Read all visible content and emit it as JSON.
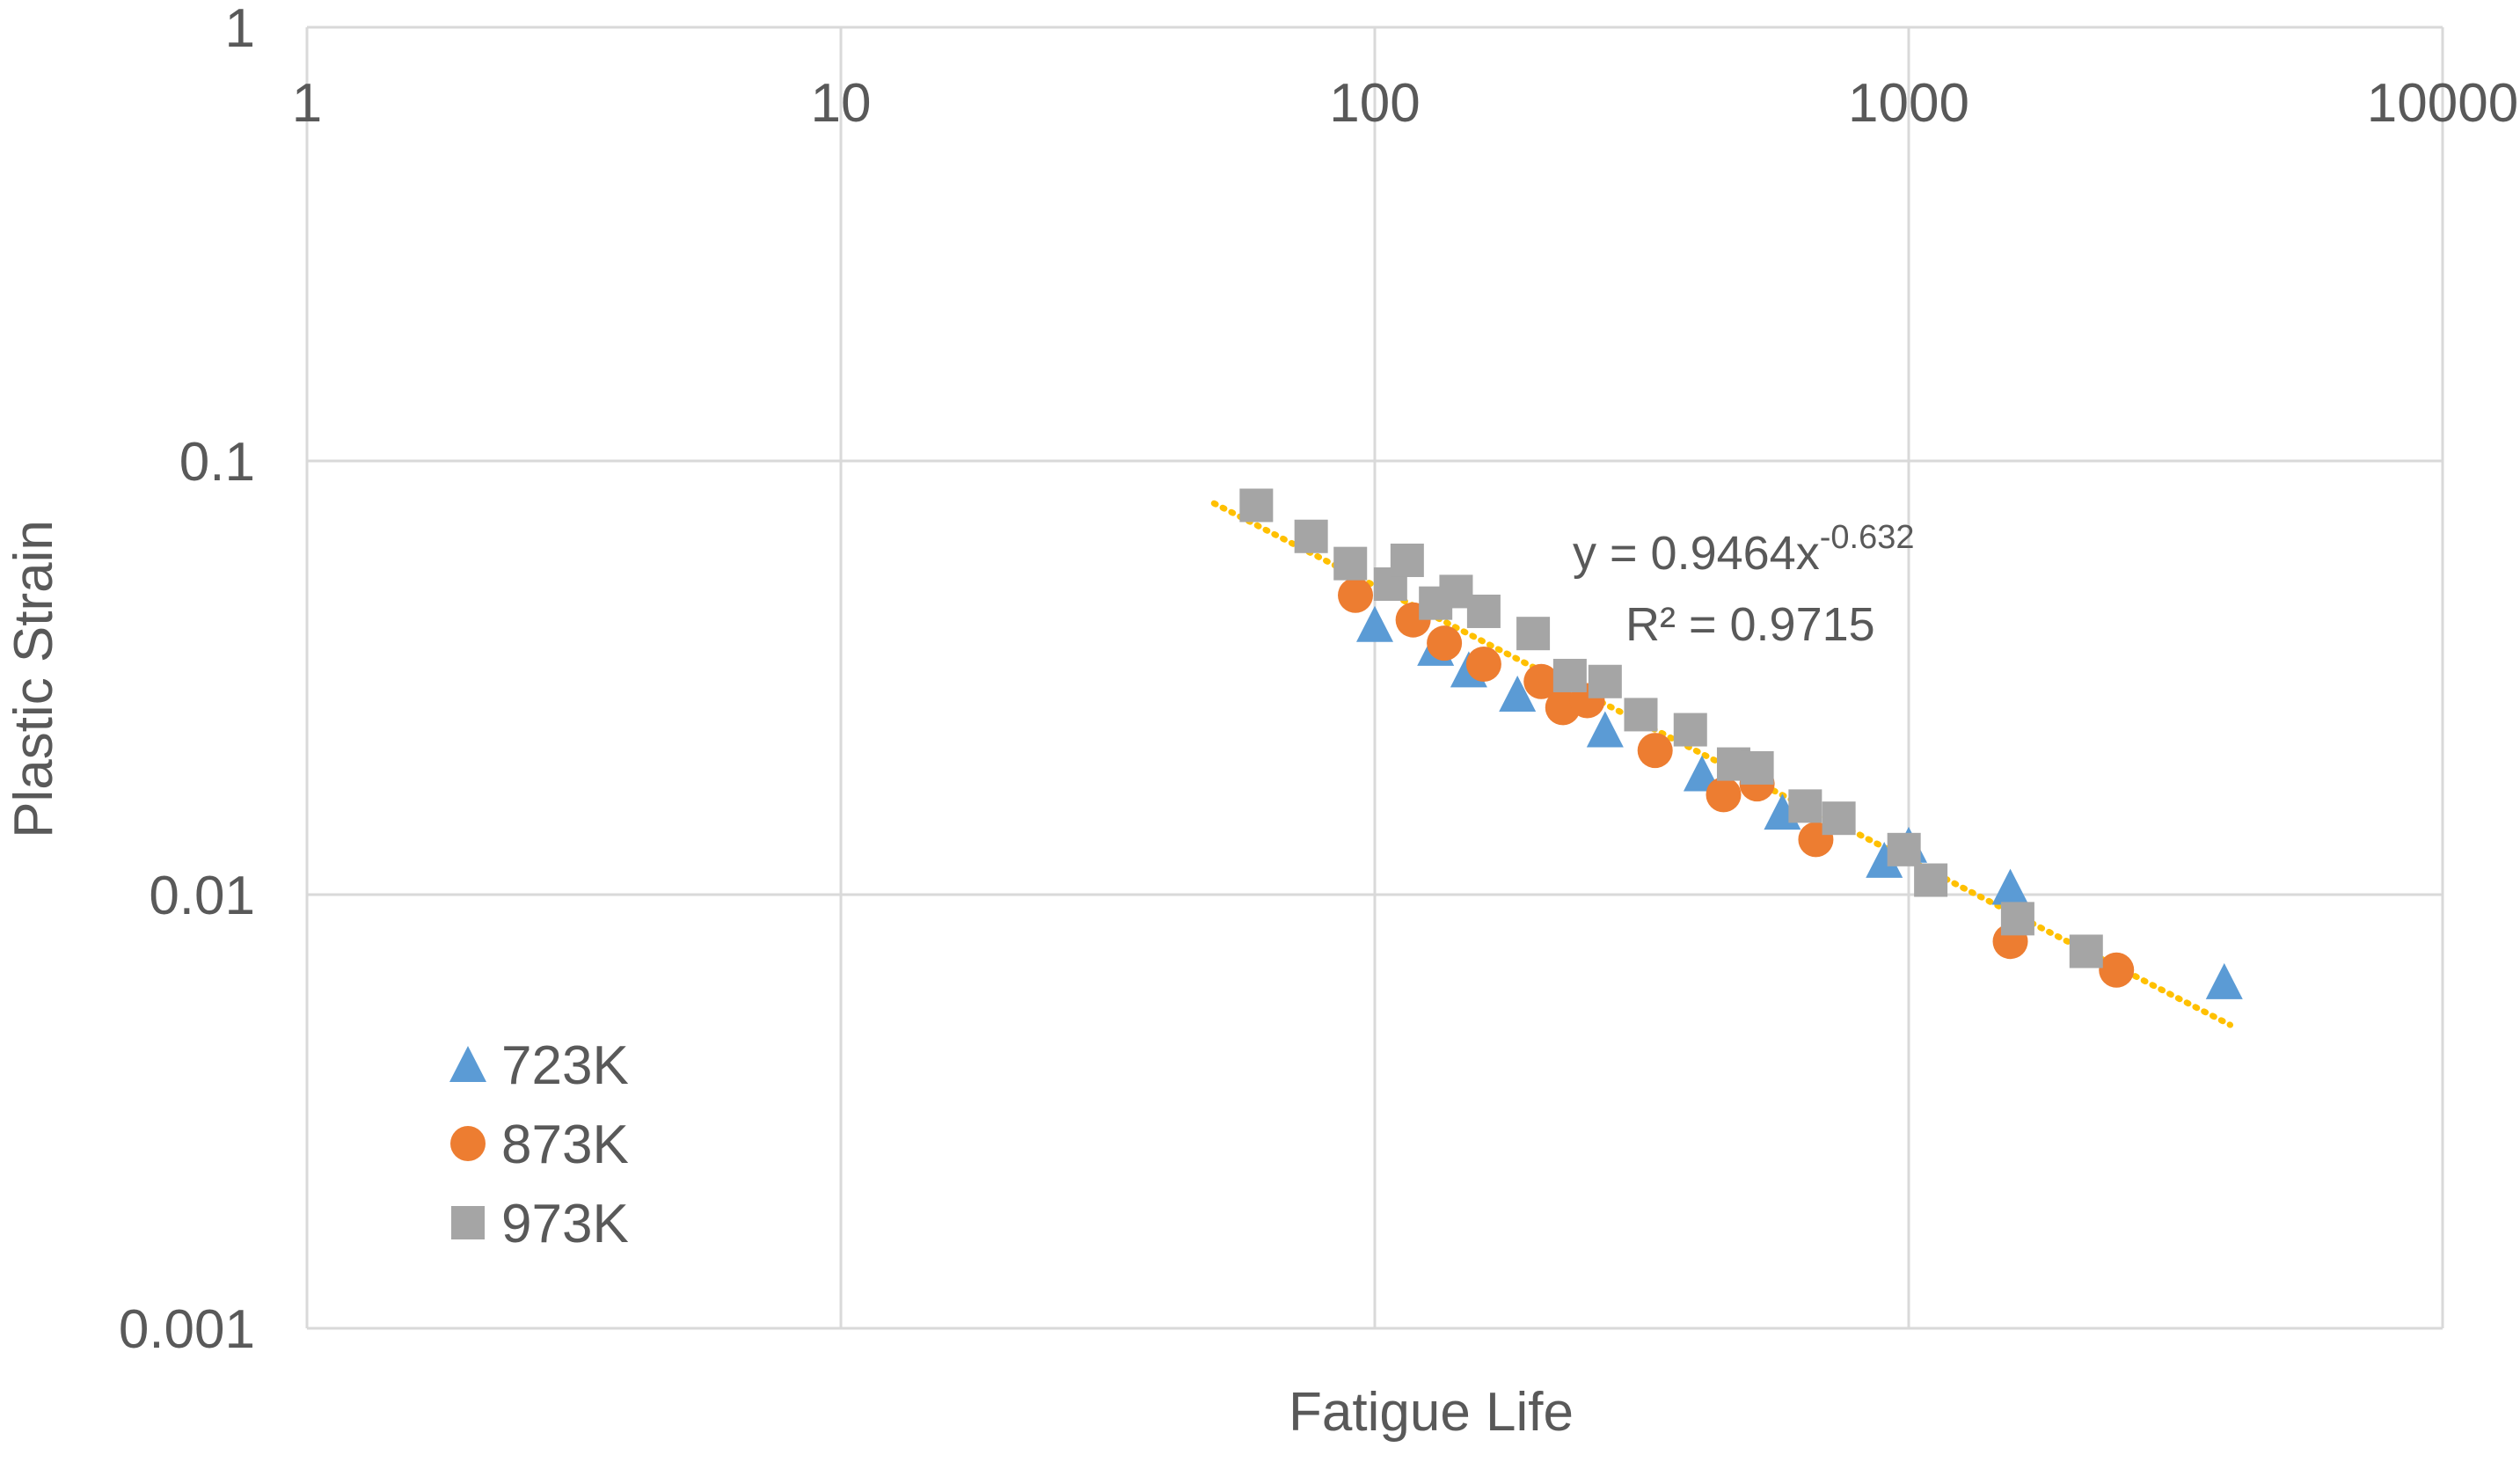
{
  "chart_data": {
    "type": "scatter",
    "title": "",
    "xlabel": "Fatigue Life",
    "ylabel": "Plastic Strain",
    "xscale": "log",
    "yscale": "log",
    "xlim": [
      1,
      10000
    ],
    "ylim": [
      0.001,
      1
    ],
    "x_ticks": [
      "1",
      "10",
      "100",
      "1000",
      "10000"
    ],
    "y_ticks": [
      "1",
      "0.1",
      "0.01",
      "0.001"
    ],
    "grid": true,
    "legend_position": "bottom-left",
    "series": [
      {
        "name": "723K",
        "marker": "triangle",
        "color": "#5B9BD5",
        "points": [
          {
            "x": 100,
            "y": 0.042
          },
          {
            "x": 130,
            "y": 0.037
          },
          {
            "x": 150,
            "y": 0.033
          },
          {
            "x": 185,
            "y": 0.029
          },
          {
            "x": 270,
            "y": 0.024
          },
          {
            "x": 410,
            "y": 0.019
          },
          {
            "x": 580,
            "y": 0.0155
          },
          {
            "x": 900,
            "y": 0.012
          },
          {
            "x": 1000,
            "y": 0.013
          },
          {
            "x": 1550,
            "y": 0.0104
          },
          {
            "x": 3900,
            "y": 0.0063
          }
        ]
      },
      {
        "name": "873K",
        "marker": "circle",
        "color": "#ED7D31",
        "points": [
          {
            "x": 92,
            "y": 0.049
          },
          {
            "x": 118,
            "y": 0.043
          },
          {
            "x": 135,
            "y": 0.038
          },
          {
            "x": 160,
            "y": 0.034
          },
          {
            "x": 205,
            "y": 0.031
          },
          {
            "x": 225,
            "y": 0.027
          },
          {
            "x": 250,
            "y": 0.028
          },
          {
            "x": 335,
            "y": 0.0215
          },
          {
            "x": 450,
            "y": 0.017
          },
          {
            "x": 520,
            "y": 0.018
          },
          {
            "x": 670,
            "y": 0.0134
          },
          {
            "x": 1550,
            "y": 0.0078
          },
          {
            "x": 2450,
            "y": 0.0067
          }
        ]
      },
      {
        "name": "973K",
        "marker": "square",
        "color": "#A5A5A5",
        "points": [
          {
            "x": 60,
            "y": 0.079
          },
          {
            "x": 76,
            "y": 0.067
          },
          {
            "x": 90,
            "y": 0.058
          },
          {
            "x": 107,
            "y": 0.052
          },
          {
            "x": 115,
            "y": 0.059
          },
          {
            "x": 130,
            "y": 0.047
          },
          {
            "x": 142,
            "y": 0.05
          },
          {
            "x": 160,
            "y": 0.045
          },
          {
            "x": 198,
            "y": 0.04
          },
          {
            "x": 232,
            "y": 0.032
          },
          {
            "x": 270,
            "y": 0.031
          },
          {
            "x": 315,
            "y": 0.026
          },
          {
            "x": 390,
            "y": 0.024
          },
          {
            "x": 470,
            "y": 0.02
          },
          {
            "x": 520,
            "y": 0.0196
          },
          {
            "x": 640,
            "y": 0.016
          },
          {
            "x": 740,
            "y": 0.015
          },
          {
            "x": 980,
            "y": 0.0127
          },
          {
            "x": 1100,
            "y": 0.0108
          },
          {
            "x": 1600,
            "y": 0.0088
          },
          {
            "x": 2150,
            "y": 0.0074
          }
        ]
      }
    ],
    "trendline": {
      "type": "power",
      "color": "#FFC000",
      "coefficient": 0.9464,
      "exponent": -0.632,
      "x_range": [
        50,
        4000
      ],
      "equation_base": "y = 0.9464x",
      "equation_exponent": "-0.632",
      "r2_label": "R² = 0.9715"
    }
  }
}
